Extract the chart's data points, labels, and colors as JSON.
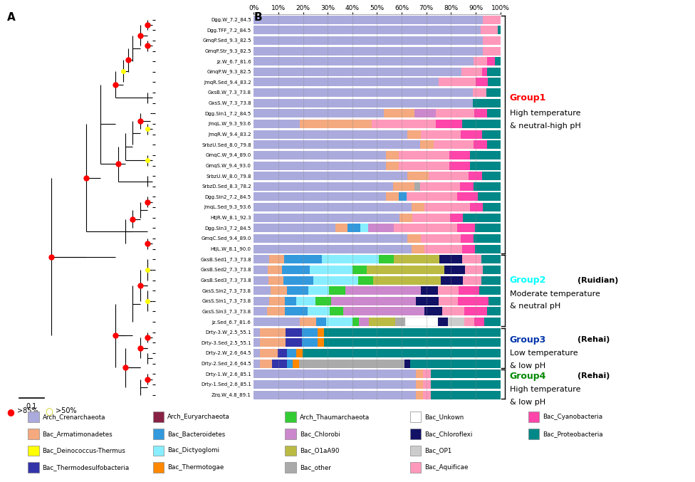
{
  "samples": [
    "Dgg.W_7.2_84.5",
    "Dgg.TFF_7.2_84.5",
    "GmqP.Sed_9.3_82.5",
    "GmqP.Str_9.3_82.5",
    "Jz.W_6.7_81.6",
    "GmqP.W_9.3_82.5",
    "JmqR.Sed_9.4_83.2",
    "GxsB.W_7.3_73.8",
    "GxsS.W_7.3_73.8",
    "Dgg.Sin1_7.2_84.5",
    "JmqL.W_9.3_93.6",
    "JmqR.W_9.4_83.2",
    "SrbzU.Sed_8.0_79.8",
    "GmqC.W_9.4_89.0",
    "GmqS.W_9.4_93.0",
    "SrbzU.W_8.0_79.8",
    "SrbzD.Sed_8.3_78.2",
    "Dgg.Sin2_7.2_84.5",
    "JmqL.Sed_9.3_93.6",
    "HtjR.W_8.1_92.3",
    "Dgg.Sin3_7.2_84.5",
    "GmqC.Sed_9.4_89.0",
    "HtjL.W_8.1_90.0",
    "GxsB.Sed1_7.3_73.8",
    "GxsB.Sed2_7.3_73.8",
    "GxsB.Sed3_7.3_73.8",
    "GxsS.Sin2_7.3_73.8",
    "GxsS.Sin1_7.3_73.8",
    "GxsS.Sin3_7.3_73.8",
    "Jz.Sed_6.7_81.6",
    "Drty-3.W_2.5_55.1",
    "Drty-3.Sed_2.5_55.1",
    "Drty-2.W_2.6_64.5",
    "Drty-2.Sed_2.6_64.5",
    "Drty-1.W_2.6_85.1",
    "Drty-1.Sed_2.6_85.1",
    "Zzq.W_4.8_89.1"
  ],
  "taxa": [
    "Arch_Crenarchaeota",
    "Bac_Armatimonadetes",
    "Bac_Deinococcus-Thermus",
    "Bac_Thermodesulfobacteria",
    "Arch_Euryarchaeota",
    "Bac_Bacteroidetes",
    "Bac_Dictyoglomi",
    "Bac_Thermotogae",
    "Arch_Thaumarchaeota",
    "Bac_Chlorobi",
    "Bac_O1aA90",
    "Bac_other",
    "Bac_Unkown",
    "Bac_Chloroflexi",
    "Bac_OP1",
    "Bac_Aquificae",
    "Bac_Cyanobacteria",
    "Bac_Proteobacteria"
  ],
  "taxa_colors": [
    "#AAAADD",
    "#F4A97F",
    "#FFFF00",
    "#3333AA",
    "#882244",
    "#3399DD",
    "#88EEFF",
    "#FF8800",
    "#33CC33",
    "#CC88CC",
    "#BBBB44",
    "#AAAAAA",
    "#FFFFFF",
    "#111166",
    "#CCCCCC",
    "#FF99BB",
    "#FF44AA",
    "#008888"
  ],
  "bar_data": [
    [
      93,
      0,
      0,
      0,
      0,
      0,
      0,
      0,
      0,
      0,
      0,
      0,
      0,
      0,
      0,
      7,
      0,
      0
    ],
    [
      92,
      0,
      0,
      0,
      0,
      0,
      0,
      0,
      0,
      0,
      0,
      0,
      0,
      0,
      0,
      7,
      0,
      1
    ],
    [
      93,
      0,
      0,
      0,
      0,
      0,
      0,
      0,
      0,
      0,
      0,
      0,
      0,
      0,
      0,
      7,
      0,
      0
    ],
    [
      93,
      0,
      0,
      0,
      0,
      0,
      0,
      0,
      0,
      0,
      0,
      0,
      0,
      0,
      0,
      7,
      0,
      0
    ],
    [
      83,
      0,
      0,
      0,
      0,
      0,
      0,
      0,
      0,
      0,
      0,
      0,
      0,
      0,
      0,
      5,
      3,
      2
    ],
    [
      80,
      0,
      0,
      0,
      0,
      0,
      0,
      0,
      0,
      0,
      0,
      0,
      0,
      0,
      0,
      8,
      2,
      5
    ],
    [
      75,
      0,
      0,
      0,
      0,
      0,
      0,
      0,
      0,
      0,
      0,
      0,
      0,
      0,
      0,
      15,
      5,
      5
    ],
    [
      80,
      0,
      0,
      0,
      0,
      0,
      0,
      0,
      0,
      0,
      0,
      0,
      0,
      0,
      0,
      5,
      0,
      5
    ],
    [
      80,
      0,
      0,
      0,
      0,
      0,
      0,
      0,
      0,
      0,
      0,
      0,
      0,
      0,
      0,
      0,
      0,
      10
    ],
    [
      50,
      12,
      0,
      0,
      0,
      0,
      0,
      0,
      0,
      8,
      0,
      0,
      0,
      0,
      0,
      15,
      5,
      5
    ],
    [
      18,
      28,
      0,
      0,
      0,
      0,
      0,
      0,
      0,
      0,
      0,
      0,
      0,
      0,
      0,
      25,
      10,
      15
    ],
    [
      58,
      5,
      0,
      0,
      0,
      0,
      0,
      0,
      0,
      0,
      0,
      0,
      0,
      0,
      0,
      15,
      8,
      7
    ],
    [
      62,
      5,
      0,
      0,
      0,
      0,
      0,
      0,
      0,
      0,
      0,
      0,
      0,
      0,
      0,
      15,
      5,
      5
    ],
    [
      52,
      5,
      0,
      0,
      0,
      0,
      0,
      0,
      0,
      0,
      0,
      0,
      0,
      0,
      0,
      20,
      8,
      12
    ],
    [
      52,
      5,
      0,
      0,
      0,
      0,
      0,
      0,
      0,
      0,
      0,
      0,
      0,
      0,
      0,
      20,
      8,
      12
    ],
    [
      58,
      8,
      0,
      0,
      0,
      0,
      0,
      0,
      0,
      0,
      0,
      0,
      0,
      0,
      0,
      15,
      5,
      7
    ],
    [
      52,
      8,
      0,
      0,
      0,
      0,
      0,
      0,
      0,
      0,
      0,
      2,
      0,
      0,
      0,
      15,
      5,
      10
    ],
    [
      52,
      5,
      0,
      0,
      0,
      3,
      0,
      0,
      0,
      0,
      0,
      0,
      0,
      0,
      0,
      20,
      8,
      9
    ],
    [
      62,
      5,
      0,
      0,
      0,
      0,
      0,
      0,
      0,
      0,
      0,
      0,
      0,
      0,
      0,
      18,
      5,
      7
    ],
    [
      58,
      5,
      0,
      0,
      0,
      0,
      0,
      0,
      0,
      0,
      0,
      0,
      0,
      0,
      0,
      15,
      5,
      15
    ],
    [
      32,
      5,
      0,
      0,
      0,
      5,
      3,
      0,
      0,
      10,
      0,
      0,
      0,
      0,
      0,
      25,
      7,
      10
    ],
    [
      58,
      5,
      0,
      0,
      0,
      0,
      0,
      0,
      0,
      0,
      0,
      0,
      0,
      0,
      0,
      15,
      5,
      10
    ],
    [
      62,
      5,
      0,
      0,
      0,
      0,
      0,
      0,
      0,
      0,
      0,
      0,
      0,
      0,
      0,
      15,
      5,
      10
    ],
    [
      4,
      4,
      0,
      0,
      0,
      10,
      15,
      0,
      4,
      0,
      12,
      0,
      0,
      6,
      0,
      5,
      0,
      5
    ],
    [
      4,
      4,
      0,
      0,
      0,
      8,
      12,
      0,
      4,
      0,
      22,
      0,
      0,
      6,
      0,
      5,
      0,
      5
    ],
    [
      4,
      4,
      0,
      0,
      0,
      8,
      12,
      0,
      4,
      0,
      18,
      0,
      0,
      6,
      0,
      5,
      0,
      5
    ],
    [
      4,
      4,
      0,
      0,
      0,
      5,
      5,
      0,
      4,
      18,
      0,
      0,
      0,
      4,
      0,
      5,
      5,
      5
    ],
    [
      4,
      4,
      0,
      0,
      0,
      3,
      5,
      0,
      4,
      22,
      0,
      0,
      0,
      6,
      0,
      5,
      8,
      3
    ],
    [
      3,
      4,
      0,
      0,
      0,
      5,
      5,
      0,
      3,
      18,
      0,
      0,
      0,
      4,
      0,
      5,
      5,
      3
    ],
    [
      14,
      5,
      0,
      0,
      0,
      3,
      8,
      0,
      2,
      3,
      8,
      3,
      10,
      3,
      5,
      3,
      3,
      5
    ],
    [
      2,
      8,
      0,
      5,
      0,
      5,
      0,
      2,
      0,
      0,
      0,
      0,
      0,
      0,
      0,
      0,
      0,
      55
    ],
    [
      2,
      8,
      0,
      5,
      0,
      5,
      0,
      2,
      0,
      0,
      0,
      0,
      0,
      0,
      0,
      0,
      0,
      55
    ],
    [
      2,
      6,
      0,
      3,
      0,
      3,
      0,
      2,
      0,
      0,
      0,
      0,
      0,
      0,
      0,
      0,
      0,
      65
    ],
    [
      2,
      4,
      0,
      5,
      0,
      2,
      0,
      2,
      0,
      0,
      0,
      35,
      0,
      2,
      0,
      0,
      0,
      30
    ],
    [
      63,
      3,
      0,
      0,
      0,
      0,
      0,
      0,
      0,
      0,
      0,
      0,
      0,
      0,
      0,
      3,
      0,
      27
    ],
    [
      63,
      3,
      0,
      0,
      0,
      0,
      0,
      0,
      0,
      0,
      0,
      0,
      0,
      0,
      0,
      3,
      0,
      27
    ],
    [
      63,
      3,
      0,
      0,
      0,
      0,
      0,
      0,
      0,
      0,
      0,
      0,
      0,
      0,
      0,
      3,
      0,
      27
    ]
  ],
  "legend_items": [
    [
      "Arch_Crenarchaeota",
      "#AAAADD"
    ],
    [
      "Bac_Armatimonadetes",
      "#F4A97F"
    ],
    [
      "Bac_Deinococcus-Thermus",
      "#FFFF00"
    ],
    [
      "Bac_Thermodesulfobacteria",
      "#3333AA"
    ],
    [
      "Arch_Euryarchaeota",
      "#882244"
    ],
    [
      "Bac_Bacteroidetes",
      "#3399DD"
    ],
    [
      "Bac_Dictyoglomi",
      "#88EEFF"
    ],
    [
      "Bac_Thermotogae",
      "#FF8800"
    ],
    [
      "Arch_Thaumarchaeota",
      "#33CC33"
    ],
    [
      "Bac_Chlorobi",
      "#CC88CC"
    ],
    [
      "Bac_O1aA90",
      "#BBBB44"
    ],
    [
      "Bac_other",
      "#AAAAAA"
    ],
    [
      "Bac_Unkown",
      "#FFFFFF"
    ],
    [
      "Bac_Chloroflexi",
      "#111166"
    ],
    [
      "Bac_OP1",
      "#CCCCCC"
    ],
    [
      "Bac_Aquificae",
      "#FF99BB"
    ],
    [
      "Bac_Cyanobacteria",
      "#FF44AA"
    ],
    [
      "Bac_Proteobacteria",
      "#008888"
    ]
  ]
}
